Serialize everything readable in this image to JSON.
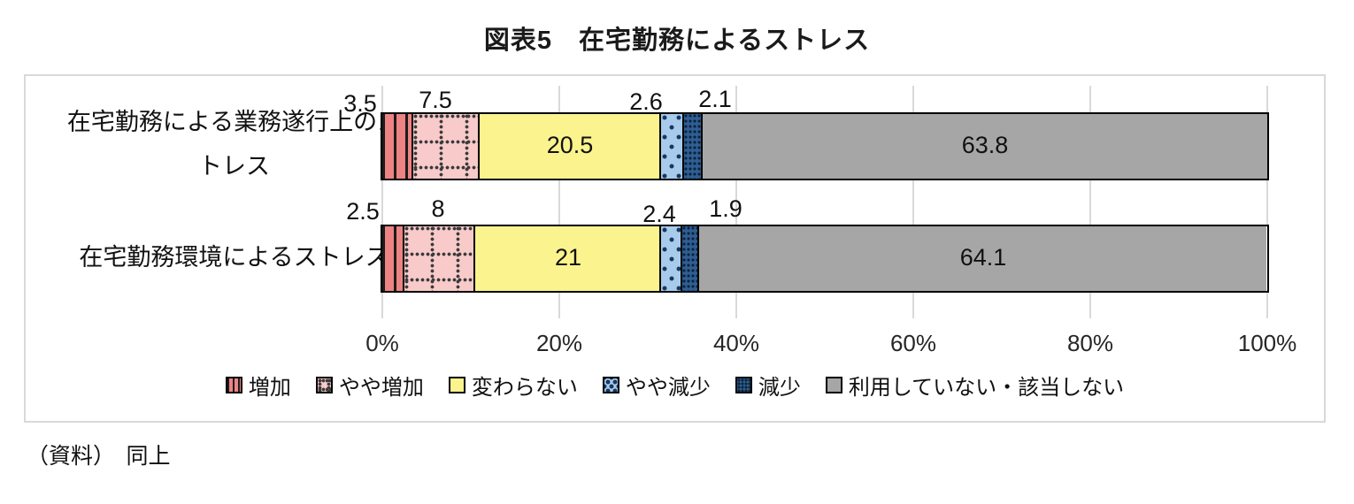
{
  "title": "図表5　在宅勤務によるストレス",
  "source": "（資料）　同上",
  "chart_data": {
    "type": "bar",
    "stacked": true,
    "orientation": "horizontal",
    "unit": "%",
    "x_axis": {
      "range": [
        0,
        100
      ],
      "tick_labels": [
        "0%",
        "20%",
        "40%",
        "60%",
        "80%",
        "100%"
      ],
      "grid": true,
      "gridline_color": "#d9d9d9"
    },
    "legend_position": "bottom",
    "series": [
      {
        "name": "増加",
        "color": "#ee8383",
        "pattern": "vertical-stripes"
      },
      {
        "name": "やや増加",
        "color": "#f8caca",
        "pattern": "dashed-grid"
      },
      {
        "name": "変わらない",
        "color": "#fbf38d",
        "pattern": "solid"
      },
      {
        "name": "やや減少",
        "color": "#a8cbec",
        "pattern": "sparse-dots"
      },
      {
        "name": "減少",
        "color": "#2e5e94",
        "pattern": "dense-dots"
      },
      {
        "name": "利用していない・該当しない",
        "color": "#a6a6a6",
        "pattern": "solid"
      }
    ],
    "categories": [
      "在宅勤務による業務遂行上のストレス",
      "在宅勤務環境によるストレス"
    ],
    "rows": [
      {
        "label": "在宅勤務による業務遂行上のストレス",
        "values": [
          3.5,
          7.5,
          20.5,
          2.6,
          2.1,
          63.8
        ]
      },
      {
        "label": "在宅勤務環境によるストレス",
        "values": [
          2.5,
          8,
          21,
          2.4,
          1.9,
          64.1
        ]
      }
    ]
  }
}
